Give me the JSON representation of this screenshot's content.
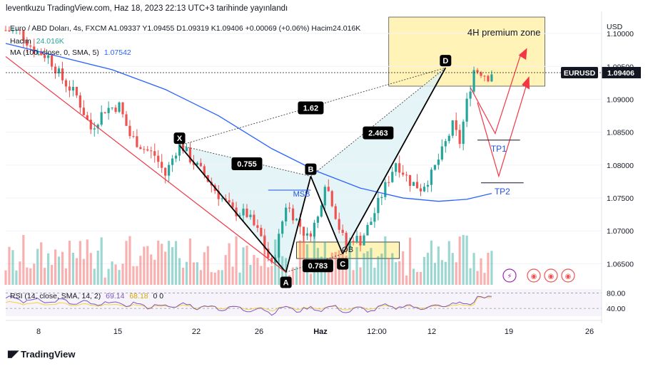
{
  "header": {
    "publish_line": "leventkuzu TradingView.com, Haz 18, 2023 22:13 UTC+3 tarihinde yayınlandı"
  },
  "legend": {
    "ohlc_line": "Euro / ABD Doları, 4s, FXCM  A1.09337  Y1.09455  D1.09319  K1.09406  +0.00069 (+0.06%)  Hacim24.016K",
    "volume_label": "Hacim",
    "volume_value": "24.016K",
    "ma_label": "MA (100, close, 0, SMA, 5)",
    "ma_value": "1.07542",
    "rsi_label": "RSI (14, close, SMA, 14, 2)",
    "rsi_value": "69.14",
    "rsi_ma_value": "68.18",
    "rsi_extra": "0  0"
  },
  "footer": {
    "brand": "TradingView"
  },
  "colors": {
    "up": "#26a69a",
    "down": "#ef5350",
    "ma": "#2962ff",
    "rsi": "#7e57c2",
    "rsi_ma": "#f5d33b",
    "premium_zone": "#fff3b8",
    "ob_zone": "#fff3b8",
    "trendline": "#f23645",
    "target": "#f23645",
    "tp_line": "#1e53e5",
    "price_tag": "#131722"
  },
  "chart_data": {
    "type": "candlestick",
    "symbol": "EURUSD",
    "timeframe": "4s",
    "last_price": 1.09406,
    "y_axis_unit": "USD",
    "y_ticks": [
      1.1,
      1.095,
      1.09,
      1.085,
      1.08,
      1.075,
      1.07,
      1.065
    ],
    "y_range": [
      1.0618,
      1.1025
    ],
    "x_ticks": [
      "8",
      "15",
      "22",
      "26",
      "Haz",
      "12:00",
      "12",
      "19",
      "26"
    ],
    "x_range": [
      0,
      168
    ],
    "candle_close_path": [
      [
        0,
        1.1005
      ],
      [
        4,
        1.1002
      ],
      [
        8,
        1.0975
      ],
      [
        12,
        1.0965
      ],
      [
        16,
        1.093
      ],
      [
        20,
        1.0905
      ],
      [
        24,
        1.0855
      ],
      [
        28,
        1.0885
      ],
      [
        32,
        1.089
      ],
      [
        35,
        1.0845
      ],
      [
        39,
        1.0825
      ],
      [
        42,
        1.0815
      ],
      [
        45,
        1.0785
      ],
      [
        49,
        1.0835
      ],
      [
        52,
        1.081
      ],
      [
        56,
        1.0785
      ],
      [
        60,
        1.0755
      ],
      [
        64,
        1.073
      ],
      [
        68,
        1.0725
      ],
      [
        72,
        1.069
      ],
      [
        75,
        1.0645
      ],
      [
        77,
        1.069
      ],
      [
        79,
        1.074
      ],
      [
        81,
        1.0725
      ],
      [
        85,
        1.069
      ],
      [
        88,
        1.072
      ],
      [
        90,
        1.0775
      ],
      [
        92,
        1.0745
      ],
      [
        94,
        1.0705
      ],
      [
        96,
        1.0675
      ],
      [
        98,
        1.069
      ],
      [
        100,
        1.0685
      ],
      [
        103,
        1.0715
      ],
      [
        106,
        1.0755
      ],
      [
        110,
        1.0805
      ],
      [
        114,
        1.0775
      ],
      [
        117,
        1.0765
      ],
      [
        120,
        1.0785
      ],
      [
        123,
        1.082
      ],
      [
        126,
        1.086
      ],
      [
        128,
        1.0835
      ],
      [
        130,
        1.0895
      ],
      [
        132,
        1.0945
      ],
      [
        134,
        1.0942
      ],
      [
        136,
        1.0935
      ],
      [
        137,
        1.0941
      ]
    ],
    "volume_range": [
      0,
      1
    ],
    "ma100": [
      [
        0,
        1.0985
      ],
      [
        15,
        1.0965
      ],
      [
        30,
        1.0945
      ],
      [
        45,
        1.0915
      ],
      [
        60,
        1.0875
      ],
      [
        75,
        1.0825
      ],
      [
        88,
        1.079
      ],
      [
        100,
        1.0765
      ],
      [
        112,
        1.075
      ],
      [
        122,
        1.0745
      ],
      [
        130,
        1.0748
      ],
      [
        137,
        1.0757
      ]
    ],
    "rsi_ticks": [
      80,
      40
    ],
    "rsi_range": [
      20,
      90
    ],
    "rsi_last": 69.14,
    "rsi_ma_last": 68.18,
    "harmonic_pattern": {
      "points": [
        {
          "label": "X",
          "x": 49,
          "y": 1.083
        },
        {
          "label": "A",
          "x": 79,
          "y": 1.0637
        },
        {
          "label": "B",
          "x": 86,
          "y": 1.0783
        },
        {
          "label": "C",
          "x": 95,
          "y": 1.0665
        },
        {
          "label": "D",
          "x": 124,
          "y": 1.0948
        }
      ],
      "ratios": [
        {
          "text": "0.755",
          "x": 68,
          "y": 1.0802
        },
        {
          "text": "0.783",
          "x": 88,
          "y": 1.0647
        },
        {
          "text": "1.62",
          "x": 86,
          "y": 1.0887
        },
        {
          "text": "2.463",
          "x": 105,
          "y": 1.0849
        }
      ]
    },
    "zones": [
      {
        "label": "4H premium zone",
        "x0": 108,
        "x1": 152,
        "y0": 1.092,
        "y1": 1.1025
      },
      {
        "label": "OB",
        "x0": 82,
        "x1": 111,
        "y0": 1.0658,
        "y1": 1.0683
      }
    ],
    "msb_label": "MSB",
    "targets": [
      {
        "label": "TP1",
        "y": 1.0838,
        "x0": 133,
        "x1": 145
      },
      {
        "label": "TP2",
        "y": 1.0773,
        "x0": 134,
        "x1": 146
      }
    ]
  }
}
